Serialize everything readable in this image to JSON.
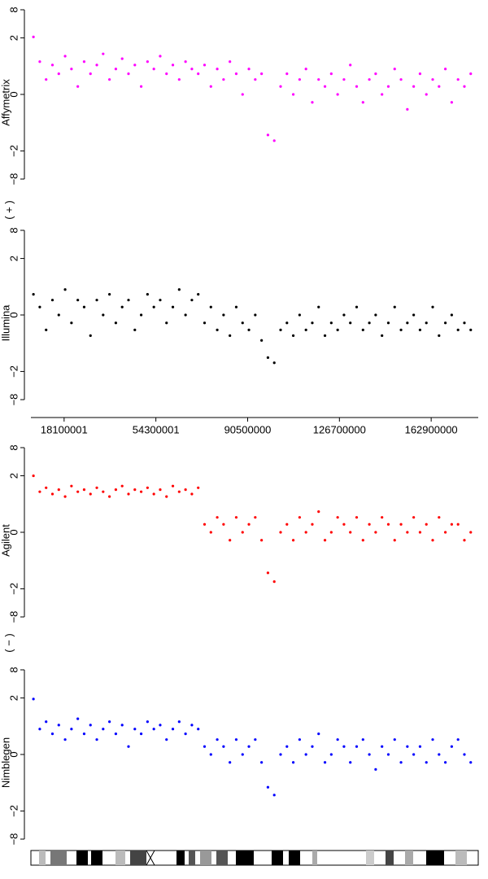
{
  "chart_data": {
    "type": "scatter",
    "x": [
      6000000,
      8500000,
      11000000,
      13500000,
      16000000,
      18500000,
      21000000,
      23500000,
      26000000,
      28500000,
      31000000,
      33500000,
      36000000,
      38500000,
      41000000,
      43500000,
      46000000,
      48500000,
      51000000,
      53500000,
      56000000,
      58500000,
      61000000,
      63500000,
      66000000,
      68500000,
      71000000,
      73500000,
      76000000,
      78500000,
      81000000,
      83500000,
      86000000,
      88500000,
      91000000,
      93500000,
      96000000,
      98500000,
      101000000,
      103500000,
      106000000,
      108500000,
      111000000,
      113500000,
      116000000,
      118500000,
      121000000,
      123500000,
      126000000,
      128500000,
      131000000,
      133500000,
      136000000,
      138500000,
      141000000,
      143500000,
      146000000,
      148500000,
      151000000,
      153500000,
      156000000,
      158500000,
      161000000,
      163500000,
      166000000,
      168500000,
      171000000,
      173500000,
      176000000,
      178500000
    ],
    "series": [
      {
        "name": "Affymetrix",
        "color": "#ff00ff",
        "values": [
          2.1,
          0.6,
          0.2,
          0.5,
          0.3,
          0.8,
          0.4,
          0.1,
          0.6,
          0.3,
          0.5,
          0.9,
          0.2,
          0.4,
          0.7,
          0.3,
          0.5,
          0.1,
          0.6,
          0.4,
          0.8,
          0.3,
          0.5,
          0.2,
          0.6,
          0.4,
          0.3,
          0.5,
          0.1,
          0.4,
          0.2,
          0.6,
          0.3,
          0.0,
          0.4,
          0.2,
          0.3,
          -0.9,
          -1.2,
          0.1,
          0.3,
          0.0,
          0.2,
          0.4,
          -0.1,
          0.2,
          0.1,
          0.3,
          0.0,
          0.2,
          0.5,
          0.1,
          -0.1,
          0.2,
          0.3,
          0.0,
          0.1,
          0.4,
          0.2,
          -0.2,
          0.1,
          0.3,
          0.0,
          0.2,
          0.1,
          0.4,
          -0.1,
          0.2,
          0.1,
          0.3
        ]
      },
      {
        "name": "Illumina",
        "color": "#000000",
        "values": [
          0.3,
          0.1,
          -0.2,
          0.2,
          0.0,
          0.4,
          -0.1,
          0.2,
          0.1,
          -0.3,
          0.2,
          0.0,
          0.3,
          -0.1,
          0.1,
          0.2,
          -0.2,
          0.0,
          0.3,
          0.1,
          0.2,
          -0.1,
          0.1,
          0.4,
          0.0,
          0.2,
          0.3,
          -0.1,
          0.1,
          -0.2,
          0.0,
          -0.3,
          0.1,
          -0.1,
          -0.2,
          0.0,
          -0.4,
          -1.0,
          -1.3,
          -0.2,
          -0.1,
          -0.3,
          0.0,
          -0.2,
          -0.1,
          0.1,
          -0.3,
          -0.1,
          -0.2,
          0.0,
          -0.1,
          0.1,
          -0.2,
          -0.1,
          0.0,
          -0.3,
          -0.1,
          0.1,
          -0.2,
          -0.1,
          0.0,
          -0.2,
          -0.1,
          0.1,
          -0.3,
          -0.1,
          0.0,
          -0.2,
          -0.1,
          -0.2
        ]
      },
      {
        "name": "Agilent",
        "color": "#ff0000",
        "values": [
          2.0,
          0.9,
          1.1,
          0.8,
          1.0,
          0.7,
          1.2,
          0.9,
          1.0,
          0.8,
          1.1,
          0.9,
          0.7,
          1.0,
          1.2,
          0.8,
          1.0,
          0.9,
          1.1,
          0.8,
          1.0,
          0.7,
          1.2,
          0.9,
          1.0,
          0.8,
          1.1,
          0.1,
          0.0,
          0.2,
          0.1,
          -0.1,
          0.2,
          0.0,
          0.1,
          0.2,
          -0.1,
          -0.9,
          -1.4,
          0.0,
          0.1,
          -0.1,
          0.2,
          0.0,
          0.1,
          0.3,
          -0.1,
          0.0,
          0.2,
          0.1,
          0.0,
          0.2,
          -0.1,
          0.1,
          0.0,
          0.2,
          0.1,
          -0.1,
          0.1,
          0.0,
          0.2,
          0.0,
          0.1,
          -0.1,
          0.2,
          0.0,
          0.1,
          0.1,
          -0.1,
          0.0
        ]
      },
      {
        "name": "Nimblegen",
        "color": "#0000ff",
        "values": [
          1.9,
          0.4,
          0.6,
          0.3,
          0.5,
          0.2,
          0.4,
          0.7,
          0.3,
          0.5,
          0.2,
          0.4,
          0.6,
          0.3,
          0.5,
          0.1,
          0.4,
          0.3,
          0.6,
          0.4,
          0.5,
          0.2,
          0.4,
          0.6,
          0.3,
          0.5,
          0.4,
          0.1,
          0.0,
          0.2,
          0.1,
          -0.1,
          0.2,
          0.0,
          0.1,
          0.2,
          -0.1,
          -0.6,
          -0.9,
          0.0,
          0.1,
          -0.1,
          0.2,
          0.0,
          0.1,
          0.3,
          -0.1,
          0.0,
          0.2,
          0.1,
          -0.1,
          0.1,
          0.2,
          0.0,
          -0.2,
          0.1,
          0.0,
          0.2,
          -0.1,
          0.1,
          0.0,
          0.1,
          -0.1,
          0.2,
          0.0,
          -0.1,
          0.1,
          0.2,
          0.0,
          -0.1
        ]
      }
    ],
    "xlim": [
      5000000,
      180500000
    ],
    "xticks": [
      18100001,
      54300001,
      90500000,
      126700000,
      162900000
    ],
    "ylim": [
      -8,
      8
    ],
    "yticks": [
      8,
      2,
      0,
      {
        "value": -2,
        "label": "−2"
      },
      {
        "value": -8,
        "label": "−8"
      }
    ],
    "yscale": "asinh",
    "strand_labels": [
      "( + )",
      "( − )"
    ]
  }
}
